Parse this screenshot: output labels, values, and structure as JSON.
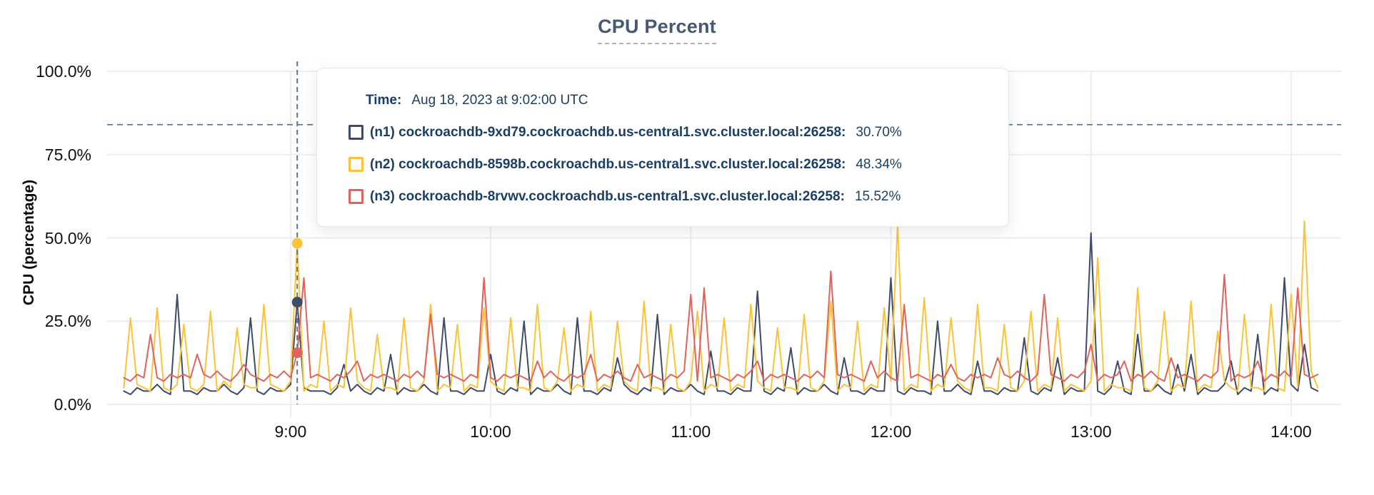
{
  "tooltip": {
    "time_label": "Time:",
    "time_value": "Aug 18, 2023 at 9:02:00 UTC"
  },
  "chart_data": {
    "type": "line",
    "title": "CPU Percent",
    "ylabel": "CPU (percentage)",
    "ylim": [
      0,
      100
    ],
    "grid": true,
    "legend_position": "tooltip-overlay",
    "y_ticks": [
      {
        "label": "0.0%",
        "value": 0
      },
      {
        "label": "25.0%",
        "value": 25
      },
      {
        "label": "50.0%",
        "value": 50
      },
      {
        "label": "75.0%",
        "value": 75
      },
      {
        "label": "100.0%",
        "value": 100
      }
    ],
    "x_ticks": [
      {
        "label": "9:00",
        "minute": 540
      },
      {
        "label": "10:00",
        "minute": 600
      },
      {
        "label": "11:00",
        "minute": 660
      },
      {
        "label": "12:00",
        "minute": 720
      },
      {
        "label": "13:00",
        "minute": 780
      },
      {
        "label": "14:00",
        "minute": 840
      }
    ],
    "x_domain_minutes": [
      485,
      855
    ],
    "threshold_line_percent": 84,
    "cursor": {
      "minute": 542,
      "time_text": "Aug 18, 2023 at 9:02:00 UTC"
    },
    "x_start_minute": 490,
    "x_step_minutes": 2,
    "series": [
      {
        "id": "n1",
        "legend_label": "(n1) cockroachdb-9xd79.cockroachdb.us-central1.svc.cluster.local:26258:",
        "cursor_value_text": "30.70%",
        "cursor_value": 30.7,
        "color": "#3e4c68",
        "values": [
          4,
          3,
          5,
          4,
          4,
          6,
          4,
          3,
          33,
          4,
          4,
          3,
          5,
          4,
          4,
          6,
          4,
          3,
          5,
          26,
          4,
          3,
          5,
          4,
          4,
          6,
          30.7,
          5,
          4,
          4,
          4,
          3,
          5,
          12,
          4,
          6,
          4,
          3,
          5,
          4,
          15,
          3,
          5,
          4,
          4,
          6,
          4,
          3,
          26,
          4,
          4,
          3,
          5,
          4,
          4,
          15,
          4,
          3,
          5,
          4,
          25,
          3,
          5,
          4,
          4,
          6,
          4,
          3,
          26,
          4,
          4,
          3,
          5,
          4,
          14,
          6,
          4,
          3,
          5,
          4,
          27,
          3,
          5,
          4,
          4,
          6,
          4,
          3,
          16,
          4,
          4,
          3,
          5,
          4,
          4,
          34,
          4,
          3,
          5,
          4,
          17,
          3,
          5,
          4,
          4,
          6,
          4,
          3,
          14,
          4,
          4,
          3,
          5,
          4,
          4,
          38,
          4,
          3,
          5,
          4,
          4,
          3,
          25,
          4,
          4,
          6,
          4,
          3,
          13,
          4,
          4,
          3,
          5,
          4,
          4,
          20,
          4,
          3,
          5,
          4,
          14,
          3,
          5,
          4,
          4,
          51.5,
          4,
          3,
          5,
          13,
          4,
          3,
          21,
          4,
          4,
          6,
          4,
          3,
          12,
          4,
          15,
          3,
          5,
          4,
          4,
          6,
          13,
          3,
          5,
          4,
          21,
          3,
          5,
          4,
          38,
          6,
          4,
          18,
          5,
          4
        ]
      },
      {
        "id": "n2",
        "legend_label": "(n2) cockroachdb-8598b.cockroachdb.us-central1.svc.cluster.local:26258:",
        "cursor_value_text": "48.34%",
        "cursor_value": 48.34,
        "color": "#fbc337",
        "values": [
          5,
          26,
          6,
          5,
          4,
          29,
          5,
          4,
          6,
          24,
          5,
          4,
          6,
          28,
          4,
          7,
          5,
          23,
          6,
          5,
          5,
          30,
          6,
          5,
          4,
          7,
          48.34,
          4,
          6,
          5,
          25,
          4,
          6,
          5,
          29,
          7,
          5,
          4,
          21,
          5,
          5,
          4,
          26,
          5,
          4,
          7,
          30,
          4,
          6,
          5,
          24,
          4,
          6,
          5,
          29,
          7,
          5,
          4,
          26,
          5,
          5,
          4,
          30,
          5,
          4,
          7,
          23,
          4,
          6,
          5,
          28,
          4,
          6,
          5,
          25,
          7,
          5,
          4,
          31,
          5,
          5,
          4,
          24,
          5,
          4,
          7,
          28,
          4,
          6,
          5,
          26,
          4,
          6,
          5,
          30,
          7,
          5,
          4,
          23,
          5,
          5,
          4,
          27,
          5,
          4,
          7,
          31,
          4,
          6,
          5,
          25,
          4,
          6,
          5,
          29,
          7,
          54,
          4,
          6,
          5,
          32,
          4,
          6,
          5,
          26,
          7,
          5,
          4,
          30,
          5,
          5,
          4,
          24,
          5,
          4,
          7,
          28,
          4,
          6,
          5,
          26,
          4,
          6,
          5,
          4,
          7,
          44,
          4,
          6,
          5,
          5,
          4,
          35,
          5,
          4,
          7,
          28,
          4,
          6,
          5,
          31,
          4,
          6,
          5,
          22,
          7,
          5,
          4,
          27,
          5,
          5,
          4,
          30,
          5,
          4,
          33,
          5,
          55,
          10,
          5
        ]
      },
      {
        "id": "n3",
        "legend_label": "(n3) cockroachdb-8rvwv.cockroachdb.us-central1.svc.cluster.local:26258:",
        "cursor_value_text": "15.52%",
        "cursor_value": 15.52,
        "color": "#e0635d",
        "values": [
          8,
          7,
          9,
          8,
          21,
          8,
          7,
          9,
          8,
          9,
          8,
          15,
          9,
          8,
          10,
          8,
          7,
          9,
          12,
          9,
          8,
          7,
          9,
          8,
          10,
          8,
          15.52,
          38,
          8,
          9,
          8,
          7,
          9,
          8,
          10,
          13,
          7,
          9,
          8,
          9,
          8,
          7,
          9,
          8,
          10,
          8,
          27,
          9,
          8,
          9,
          8,
          7,
          9,
          8,
          38,
          8,
          7,
          9,
          8,
          9,
          8,
          7,
          13,
          8,
          10,
          8,
          7,
          9,
          8,
          9,
          15,
          7,
          9,
          8,
          10,
          8,
          7,
          12,
          8,
          9,
          8,
          7,
          9,
          8,
          10,
          33,
          7,
          35,
          8,
          9,
          8,
          7,
          9,
          8,
          10,
          13,
          7,
          9,
          8,
          9,
          8,
          7,
          9,
          8,
          10,
          8,
          40,
          9,
          8,
          9,
          8,
          7,
          13,
          8,
          10,
          8,
          7,
          30,
          8,
          9,
          8,
          7,
          9,
          8,
          12,
          8,
          7,
          9,
          8,
          9,
          8,
          14,
          9,
          8,
          10,
          8,
          7,
          9,
          33,
          9,
          8,
          7,
          9,
          8,
          10,
          18,
          7,
          9,
          8,
          9,
          13,
          7,
          9,
          8,
          10,
          8,
          7,
          14,
          8,
          9,
          8,
          7,
          9,
          8,
          10,
          39,
          7,
          9,
          8,
          9,
          13,
          7,
          9,
          8,
          10,
          8,
          35,
          9,
          8,
          9
        ]
      }
    ],
    "colors": {
      "grid": "#ededed",
      "threshold_dash": "#5f7589",
      "cursor_dash": "#5f7589",
      "title": "#475872",
      "tooltip_text": "#1c3e64"
    }
  }
}
